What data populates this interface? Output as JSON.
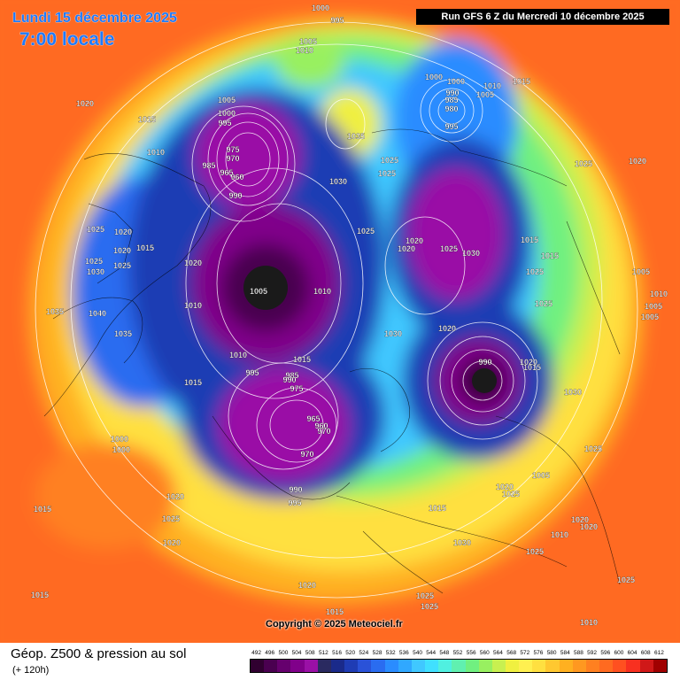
{
  "header": {
    "date": "Lundi 15 décembre 2025",
    "time": "7:00 locale",
    "run": "Run GFS 6 Z du Mercredi 10 décembre 2025"
  },
  "footer": {
    "title": "Géop. Z500 & pression au sol",
    "subtitle": "(+ 120h)",
    "copyright": "Copyright © 2025 Meteociel.fr"
  },
  "legend": {
    "values": [
      492,
      496,
      500,
      504,
      508,
      512,
      516,
      520,
      524,
      528,
      532,
      536,
      540,
      544,
      548,
      552,
      556,
      560,
      564,
      568,
      572,
      576,
      580,
      584,
      588,
      592,
      596,
      600,
      604,
      608,
      612
    ],
    "colors": [
      "#300030",
      "#4a0050",
      "#66006e",
      "#80008a",
      "#9a10a6",
      "#2a2a60",
      "#1a2a8a",
      "#1f3cb4",
      "#2a52d8",
      "#2a6cf0",
      "#2a8cff",
      "#30a8ff",
      "#40c8ff",
      "#40e0ff",
      "#50f0e0",
      "#60f0b0",
      "#70f080",
      "#98f060",
      "#c8f050",
      "#f0f040",
      "#fff050",
      "#ffe040",
      "#ffc830",
      "#ffb020",
      "#ff9820",
      "#ff8020",
      "#ff6a20",
      "#ff5020",
      "#f83020",
      "#d01818",
      "#a00000"
    ]
  },
  "pressure_labels": [
    "1000",
    "995",
    "1005",
    "1010",
    "1020",
    "1015",
    "1005",
    "1000",
    "995",
    "1010",
    "975",
    "970",
    "985",
    "965",
    "960",
    "990",
    "1030",
    "1035",
    "1025",
    "1025",
    "1000",
    "990",
    "985",
    "980",
    "995",
    "1010",
    "1015",
    "1005",
    "1000",
    "1025",
    "1025",
    "1020",
    "1020",
    "1025",
    "1015",
    "1030",
    "1025",
    "1020",
    "1020",
    "1020",
    "1025",
    "1025",
    "1020",
    "1030",
    "1015",
    "1005",
    "1010",
    "1035",
    "1040",
    "1035",
    "1010",
    "1010",
    "1005",
    "1010",
    "1015",
    "1005",
    "1015",
    "995",
    "985",
    "990",
    "975",
    "970",
    "965",
    "960",
    "970",
    "990",
    "995",
    "1030",
    "1020",
    "1025",
    "1015",
    "1025",
    "1005",
    "990",
    "1015",
    "1020",
    "1030",
    "1025",
    "1020",
    "1000",
    "1000",
    "1005",
    "1020",
    "1025",
    "1015",
    "1020",
    "1025",
    "1015",
    "1010",
    "1030",
    "1025",
    "1020",
    "1020",
    "1025",
    "1020",
    "1015",
    "1025",
    "1025",
    "1015",
    "1010",
    "1010",
    "1010"
  ]
}
